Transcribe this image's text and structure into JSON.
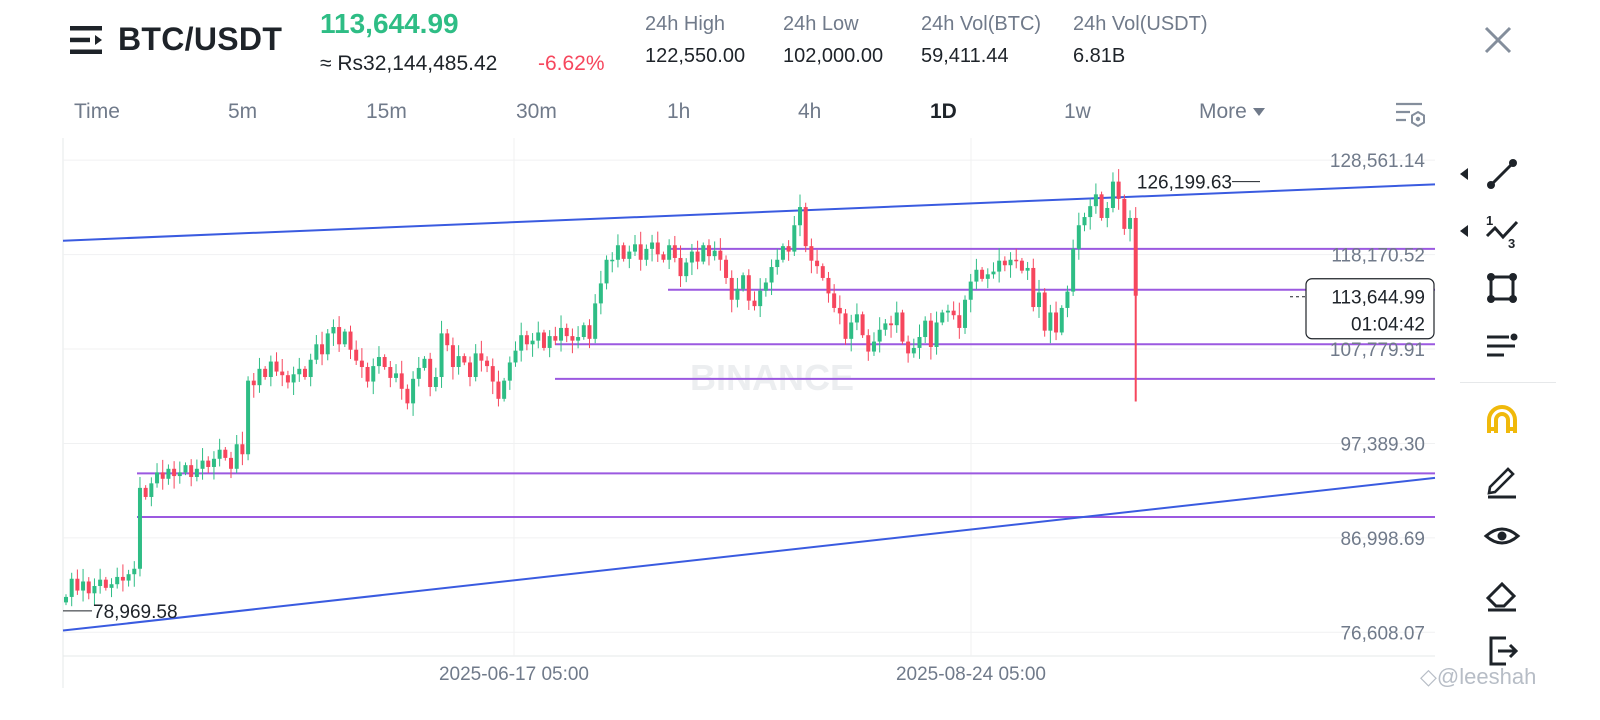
{
  "header": {
    "pair": "BTC/USDT",
    "last_price": "113,644.99",
    "fiat_price": "≈ Rs32,144,485.42",
    "change_pct": "-6.62%",
    "stats": [
      {
        "label": "24h High",
        "value": "122,550.00"
      },
      {
        "label": "24h Low",
        "value": "102,000.00"
      },
      {
        "label": "24h Vol(BTC)",
        "value": "59,411.44"
      },
      {
        "label": "24h Vol(USDT)",
        "value": "6.81B"
      }
    ]
  },
  "intervals": [
    "Time",
    "5m",
    "15m",
    "30m",
    "1h",
    "4h",
    "1D",
    "1w",
    "More"
  ],
  "active_interval": "1D",
  "colors": {
    "up": "#2ebd85",
    "down": "#f6465d",
    "trendline": "#3a5be0",
    "level": "#9b59e0",
    "grid": "#f0f1f2",
    "axis_text": "#707a8a"
  },
  "chart_data": {
    "type": "candlestick",
    "symbol": "BTC/USDT",
    "interval": "1D",
    "y_axis_ticks": [
      "128,561.14",
      "118,170.52",
      "107,779.91",
      "97,389.30",
      "86,998.69",
      "76,608.07"
    ],
    "ylim": [
      74000,
      131000
    ],
    "x_axis_ticks": [
      "2025-06-17 05:00",
      "2025-08-24 05:00"
    ],
    "current_price_label": "113,644.99",
    "countdown_label": "01:04:42",
    "max_label": "126,199.63",
    "min_label": "78,969.58",
    "horizontal_levels": [
      118800,
      114300,
      108300,
      104500,
      94100,
      89300
    ],
    "trendlines": [
      {
        "name": "upper",
        "from": 119700,
        "to": 125900
      },
      {
        "name": "lower",
        "from": 76800,
        "to": 93600
      }
    ],
    "watermark": "BINANCE",
    "closes": [
      80500,
      82500,
      81200,
      82200,
      80900,
      81700,
      82400,
      81500,
      81900,
      82700,
      82300,
      83000,
      83600,
      92500,
      91500,
      93000,
      94200,
      93500,
      94600,
      93800,
      94200,
      95000,
      93700,
      94600,
      95500,
      94800,
      95700,
      96700,
      95800,
      94600,
      97300,
      96200,
      104300,
      103800,
      105600,
      104700,
      106400,
      105300,
      104900,
      104100,
      105000,
      105600,
      104700,
      106600,
      108300,
      107200,
      109500,
      110200,
      108300,
      109700,
      107700,
      106500,
      105800,
      104200,
      105900,
      106900,
      105800,
      104600,
      105100,
      103400,
      101800,
      104500,
      105700,
      106700,
      103600,
      104700,
      109500,
      108200,
      105800,
      107000,
      106300,
      104700,
      107300,
      106500,
      105900,
      104200,
      102300,
      104300,
      106300,
      107600,
      109300,
      108300,
      108700,
      109600,
      107900,
      109200,
      108700,
      110100,
      109200,
      108700,
      109100,
      110400,
      108900,
      112800,
      115000,
      117600,
      117600,
      119200,
      117700,
      118500,
      119300,
      117600,
      118800,
      119500,
      118200,
      117600,
      119200,
      117800,
      115800,
      117300,
      118500,
      117400,
      119200,
      118000,
      118600,
      117600,
      115600,
      113200,
      114400,
      115900,
      113100,
      112500,
      114200,
      115100,
      116800,
      117600,
      119100,
      118500,
      121400,
      123400,
      119100,
      117500,
      116900,
      115600,
      113900,
      112300,
      111700,
      108900,
      110700,
      111600,
      109300,
      107500,
      108600,
      109900,
      110600,
      110400,
      111800,
      108600,
      107300,
      107900,
      109100,
      110900,
      108000,
      110700,
      111800,
      112000,
      111500,
      110100,
      113200,
      115200,
      116500,
      115500,
      116000,
      116300,
      117500,
      117000,
      117600,
      117500,
      116400,
      116700,
      112400,
      114000,
      109800,
      111800,
      109600,
      112300,
      114100,
      118800,
      121400,
      122300,
      123500,
      124800,
      122200,
      123300,
      126200,
      124300,
      121000,
      122200,
      113644.99
    ]
  }
}
